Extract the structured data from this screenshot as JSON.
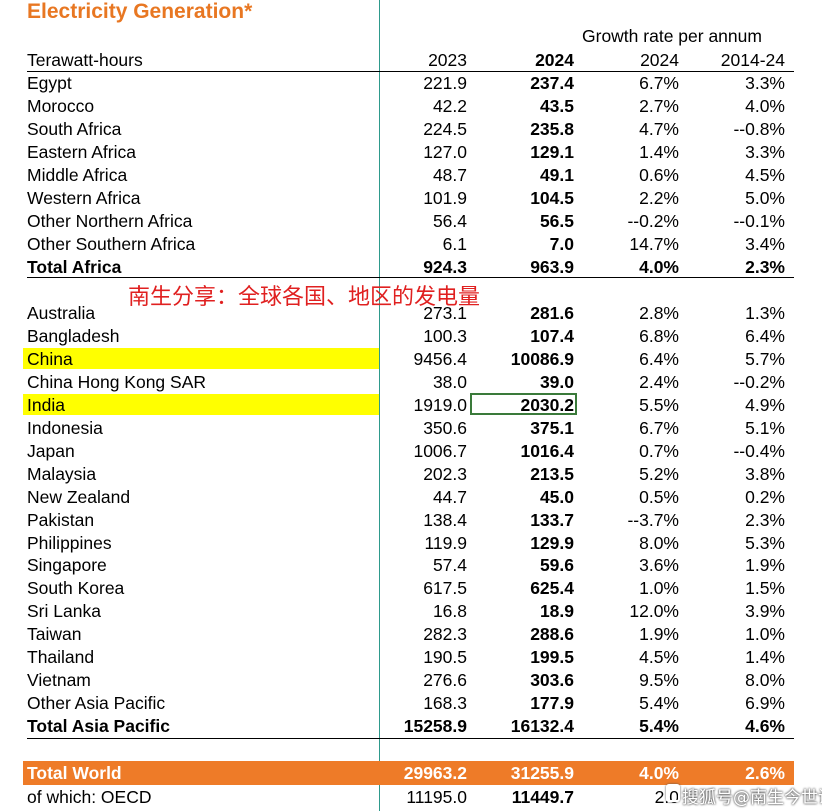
{
  "title": "Electricity Generation*",
  "header": {
    "unit": "Terawatt-hours",
    "col_2023": "2023",
    "col_2024": "2024",
    "growth_label": "Growth rate per annum",
    "growth_2024": "2024",
    "growth_range": "2014-24"
  },
  "africa": [
    {
      "name": "Egypt",
      "v2023": "221.9",
      "v2024": "237.4",
      "g2024": "6.7%",
      "g1424": "3.3%"
    },
    {
      "name": "Morocco",
      "v2023": "42.2",
      "v2024": "43.5",
      "g2024": "2.7%",
      "g1424": "4.0%"
    },
    {
      "name": "South Africa",
      "v2023": "224.5",
      "v2024": "235.8",
      "g2024": "4.7%",
      "g1424": "--0.8%"
    },
    {
      "name": "Eastern Africa",
      "v2023": "127.0",
      "v2024": "129.1",
      "g2024": "1.4%",
      "g1424": "3.3%"
    },
    {
      "name": "Middle Africa",
      "v2023": "48.7",
      "v2024": "49.1",
      "g2024": "0.6%",
      "g1424": "4.5%"
    },
    {
      "name": "Western Africa",
      "v2023": "101.9",
      "v2024": "104.5",
      "g2024": "2.2%",
      "g1424": "5.0%"
    },
    {
      "name": "Other Northern Africa",
      "v2023": "56.4",
      "v2024": "56.5",
      "g2024": "--0.2%",
      "g1424": "--0.1%"
    },
    {
      "name": "Other Southern Africa",
      "v2023": "6.1",
      "v2024": "7.0",
      "g2024": "14.7%",
      "g1424": "3.4%"
    }
  ],
  "total_africa": {
    "name": "Total Africa",
    "v2023": "924.3",
    "v2024": "963.9",
    "g2024": "4.0%",
    "g1424": "2.3%"
  },
  "overlay_text": "南生分享：全球各国、地区的发电量",
  "asia": [
    {
      "name": "Australia",
      "v2023": "273.1",
      "v2024": "281.6",
      "g2024": "2.8%",
      "g1424": "1.3%"
    },
    {
      "name": "Bangladesh",
      "v2023": "100.3",
      "v2024": "107.4",
      "g2024": "6.8%",
      "g1424": "6.4%"
    },
    {
      "name": "China",
      "v2023": "9456.4",
      "v2024": "10086.9",
      "g2024": "6.4%",
      "g1424": "5.7%"
    },
    {
      "name": "China Hong Kong SAR",
      "v2023": "38.0",
      "v2024": "39.0",
      "g2024": "2.4%",
      "g1424": "--0.2%"
    },
    {
      "name": "India",
      "v2023": "1919.0",
      "v2024": "2030.2",
      "g2024": "5.5%",
      "g1424": "4.9%"
    },
    {
      "name": "Indonesia",
      "v2023": "350.6",
      "v2024": "375.1",
      "g2024": "6.7%",
      "g1424": "5.1%"
    },
    {
      "name": "Japan",
      "v2023": "1006.7",
      "v2024": "1016.4",
      "g2024": "0.7%",
      "g1424": "--0.4%"
    },
    {
      "name": "Malaysia",
      "v2023": "202.3",
      "v2024": "213.5",
      "g2024": "5.2%",
      "g1424": "3.8%"
    },
    {
      "name": "New Zealand",
      "v2023": "44.7",
      "v2024": "45.0",
      "g2024": "0.5%",
      "g1424": "0.2%"
    },
    {
      "name": "Pakistan",
      "v2023": "138.4",
      "v2024": "133.7",
      "g2024": "--3.7%",
      "g1424": "2.3%"
    },
    {
      "name": "Philippines",
      "v2023": "119.9",
      "v2024": "129.9",
      "g2024": "8.0%",
      "g1424": "5.3%"
    },
    {
      "name": "Singapore",
      "v2023": "57.4",
      "v2024": "59.6",
      "g2024": "3.6%",
      "g1424": "1.9%"
    },
    {
      "name": "South Korea",
      "v2023": "617.5",
      "v2024": "625.4",
      "g2024": "1.0%",
      "g1424": "1.5%"
    },
    {
      "name": "Sri Lanka",
      "v2023": "16.8",
      "v2024": "18.9",
      "g2024": "12.0%",
      "g1424": "3.9%"
    },
    {
      "name": "Taiwan",
      "v2023": "282.3",
      "v2024": "288.6",
      "g2024": "1.9%",
      "g1424": "1.0%"
    },
    {
      "name": "Thailand",
      "v2023": "190.5",
      "v2024": "199.5",
      "g2024": "4.5%",
      "g1424": "1.4%"
    },
    {
      "name": "Vietnam",
      "v2023": "276.6",
      "v2024": "303.6",
      "g2024": "9.5%",
      "g1424": "8.0%"
    },
    {
      "name": "Other Asia Pacific",
      "v2023": "168.3",
      "v2024": "177.9",
      "g2024": "5.4%",
      "g1424": "6.9%"
    }
  ],
  "total_asia": {
    "name": "Total Asia Pacific",
    "v2023": "15258.9",
    "v2024": "16132.4",
    "g2024": "5.4%",
    "g1424": "4.6%"
  },
  "total_world": {
    "name": "Total World",
    "v2023": "29963.2",
    "v2024": "31255.9",
    "g2024": "4.0%",
    "g1424": "2.6%"
  },
  "oecd": {
    "name": "of which: OECD",
    "v2023": "11195.0",
    "v2024": "11449.7",
    "g2024": "2.0"
  },
  "watermark": "搜狐号@南生今世说",
  "colors": {
    "title": "#e87722",
    "highlight": "#ffff00",
    "total_bar": "#ee7b28",
    "overlay": "#e02020"
  }
}
